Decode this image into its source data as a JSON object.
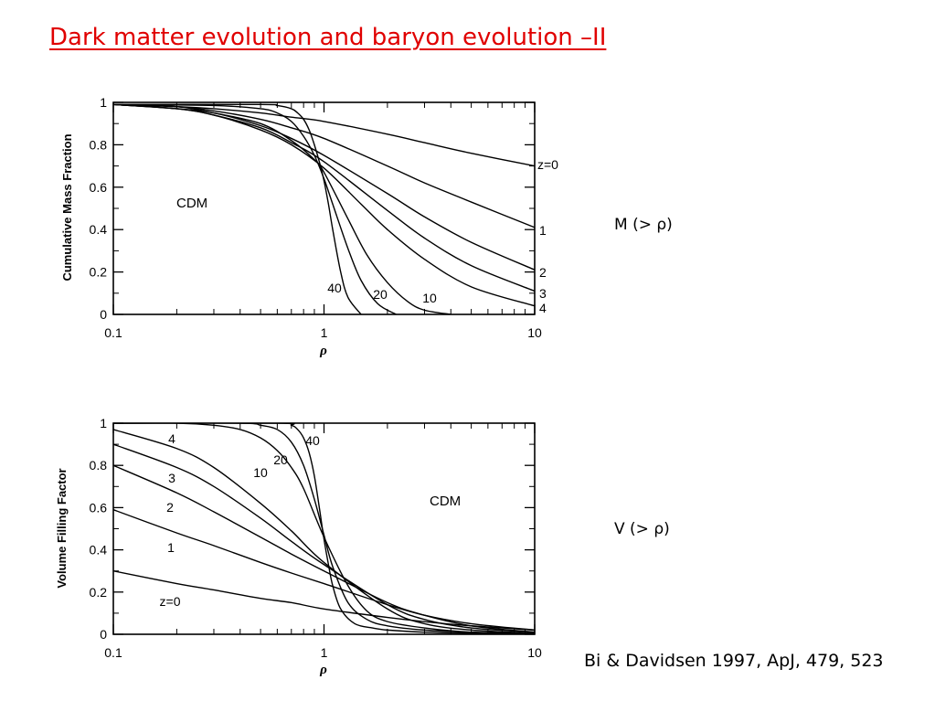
{
  "slide": {
    "title": "Dark matter evolution and baryon evolution –II",
    "citation": "Bi & Davidsen 1997, ApJ, 479, 523",
    "title_color": "#e00000"
  },
  "chart_data": [
    {
      "type": "line",
      "side_label": "M (> ρ)",
      "ylabel": "Cumulative Mass Fraction",
      "xlabel": "ρ",
      "model_label": "CDM",
      "xscale": "log",
      "xlim": [
        0.1,
        10
      ],
      "ylim": [
        0,
        1
      ],
      "x_ticks": [
        0.1,
        1,
        10
      ],
      "x_tick_labels": [
        "0.1",
        "1",
        "10"
      ],
      "y_ticks": [
        0,
        0.2,
        0.4,
        0.6,
        0.8,
        1
      ],
      "y_tick_labels": [
        "0",
        "0.2",
        "0.4",
        "0.6",
        "0.8",
        "1"
      ],
      "series": [
        {
          "name": "z=0",
          "x": [
            0.1,
            0.2,
            0.3,
            0.5,
            0.7,
            1,
            2,
            3,
            5,
            10
          ],
          "y": [
            0.99,
            0.98,
            0.97,
            0.95,
            0.93,
            0.91,
            0.85,
            0.81,
            0.76,
            0.7
          ]
        },
        {
          "name": "1",
          "x": [
            0.1,
            0.2,
            0.3,
            0.5,
            0.7,
            1,
            2,
            3,
            5,
            10
          ],
          "y": [
            0.99,
            0.98,
            0.96,
            0.92,
            0.88,
            0.83,
            0.7,
            0.62,
            0.53,
            0.41
          ]
        },
        {
          "name": "2",
          "x": [
            0.1,
            0.2,
            0.3,
            0.5,
            0.7,
            1,
            2,
            3,
            5,
            10
          ],
          "y": [
            0.99,
            0.97,
            0.95,
            0.89,
            0.83,
            0.75,
            0.57,
            0.46,
            0.34,
            0.21
          ]
        },
        {
          "name": "3",
          "x": [
            0.1,
            0.2,
            0.3,
            0.5,
            0.7,
            1,
            2,
            3,
            5,
            10
          ],
          "y": [
            0.99,
            0.97,
            0.94,
            0.88,
            0.81,
            0.72,
            0.49,
            0.36,
            0.23,
            0.11
          ]
        },
        {
          "name": "4",
          "x": [
            0.1,
            0.2,
            0.3,
            0.5,
            0.7,
            1,
            1.5,
            2,
            3,
            5,
            10
          ],
          "y": [
            0.99,
            0.97,
            0.94,
            0.87,
            0.8,
            0.69,
            0.52,
            0.4,
            0.26,
            0.13,
            0.04
          ]
        },
        {
          "name": "10",
          "x": [
            0.1,
            0.2,
            0.3,
            0.5,
            0.7,
            0.9,
            1,
            1.3,
            1.6,
            2,
            2.5,
            3,
            4
          ],
          "y": [
            0.99,
            0.98,
            0.95,
            0.9,
            0.82,
            0.73,
            0.67,
            0.45,
            0.28,
            0.15,
            0.06,
            0.02,
            0
          ]
        },
        {
          "name": "20",
          "x": [
            0.1,
            0.3,
            0.5,
            0.6,
            0.7,
            0.8,
            0.9,
            1,
            1.1,
            1.3,
            1.5,
            1.8,
            2.2
          ],
          "y": [
            0.99,
            0.985,
            0.97,
            0.95,
            0.91,
            0.84,
            0.75,
            0.64,
            0.52,
            0.31,
            0.16,
            0.05,
            0
          ]
        },
        {
          "name": "40",
          "x": [
            0.1,
            0.5,
            0.6,
            0.7,
            0.75,
            0.8,
            0.85,
            0.9,
            0.95,
            1,
            1.05,
            1.1,
            1.2,
            1.3,
            1.5
          ],
          "y": [
            0.99,
            0.99,
            0.985,
            0.97,
            0.95,
            0.92,
            0.87,
            0.8,
            0.72,
            0.63,
            0.52,
            0.4,
            0.2,
            0.08,
            0
          ]
        }
      ]
    },
    {
      "type": "line",
      "side_label": "V (> ρ)",
      "ylabel": "Volume Filling Factor",
      "xlabel": "ρ",
      "model_label": "CDM",
      "xscale": "log",
      "xlim": [
        0.1,
        10
      ],
      "ylim": [
        0,
        1
      ],
      "x_ticks": [
        0.1,
        1,
        10
      ],
      "x_tick_labels": [
        "0.1",
        "1",
        "10"
      ],
      "y_ticks": [
        0,
        0.2,
        0.4,
        0.6,
        0.8,
        1
      ],
      "y_tick_labels": [
        "0",
        "0.2",
        "0.4",
        "0.6",
        "0.8",
        "1"
      ],
      "series": [
        {
          "name": "z=0",
          "x": [
            0.1,
            0.2,
            0.3,
            0.5,
            0.7,
            1,
            2,
            3,
            5,
            10
          ],
          "y": [
            0.3,
            0.24,
            0.21,
            0.17,
            0.15,
            0.12,
            0.08,
            0.06,
            0.04,
            0.02
          ]
        },
        {
          "name": "1",
          "x": [
            0.1,
            0.2,
            0.3,
            0.5,
            0.7,
            1,
            2,
            3,
            5,
            10
          ],
          "y": [
            0.59,
            0.48,
            0.42,
            0.34,
            0.29,
            0.24,
            0.14,
            0.09,
            0.05,
            0.02
          ]
        },
        {
          "name": "2",
          "x": [
            0.1,
            0.2,
            0.3,
            0.5,
            0.7,
            1,
            2,
            3,
            5,
            10
          ],
          "y": [
            0.8,
            0.67,
            0.58,
            0.46,
            0.38,
            0.3,
            0.15,
            0.09,
            0.04,
            0.01
          ]
        },
        {
          "name": "3",
          "x": [
            0.1,
            0.2,
            0.3,
            0.5,
            0.7,
            1,
            2,
            3,
            5,
            10
          ],
          "y": [
            0.9,
            0.79,
            0.7,
            0.55,
            0.44,
            0.33,
            0.14,
            0.07,
            0.03,
            0.01
          ]
        },
        {
          "name": "4",
          "x": [
            0.1,
            0.2,
            0.3,
            0.5,
            0.7,
            1,
            2,
            3,
            5,
            10
          ],
          "y": [
            0.97,
            0.88,
            0.79,
            0.62,
            0.49,
            0.34,
            0.12,
            0.05,
            0.02,
            0.005
          ]
        },
        {
          "name": "10",
          "x": [
            0.1,
            0.2,
            0.3,
            0.4,
            0.5,
            0.6,
            0.7,
            0.8,
            1,
            1.3,
            1.6,
            2,
            3,
            5,
            10
          ],
          "y": [
            1,
            1,
            0.99,
            0.97,
            0.93,
            0.87,
            0.79,
            0.69,
            0.46,
            0.23,
            0.11,
            0.06,
            0.03,
            0.01,
            0.005
          ]
        },
        {
          "name": "20",
          "x": [
            0.1,
            0.4,
            0.5,
            0.6,
            0.7,
            0.8,
            0.9,
            1,
            1.1,
            1.3,
            1.6,
            2,
            3,
            5,
            10
          ],
          "y": [
            1,
            1,
            0.99,
            0.97,
            0.91,
            0.8,
            0.64,
            0.47,
            0.32,
            0.15,
            0.07,
            0.04,
            0.02,
            0.01,
            0.005
          ]
        },
        {
          "name": "40",
          "x": [
            0.1,
            0.6,
            0.7,
            0.75,
            0.8,
            0.85,
            0.9,
            0.95,
            1,
            1.05,
            1.1,
            1.2,
            1.4,
            1.7,
            2,
            3,
            5,
            10
          ],
          "y": [
            1,
            1,
            0.99,
            0.97,
            0.93,
            0.86,
            0.75,
            0.6,
            0.45,
            0.33,
            0.23,
            0.12,
            0.05,
            0.03,
            0.02,
            0.01,
            0.005,
            0.003
          ]
        }
      ]
    }
  ]
}
